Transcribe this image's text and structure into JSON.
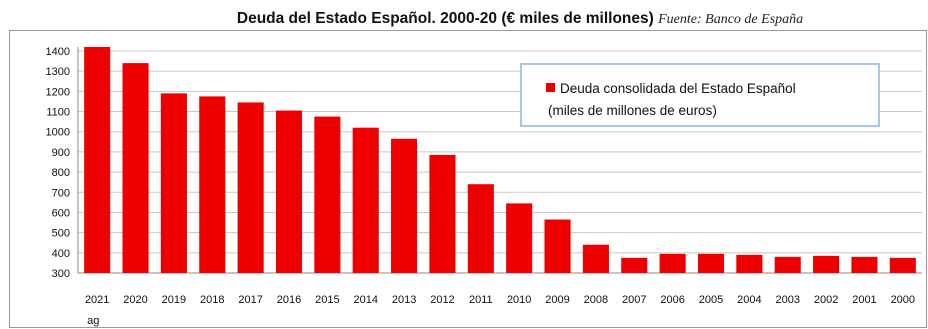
{
  "title": "Deuda del Estado Español. 2000-20 (€ miles de millones)",
  "source": "Fuente: Banco de España",
  "colors": {
    "bar": "#ee0000",
    "grid": "#c8c8c8",
    "legend_border": "#a8c8e8"
  },
  "chart_data": {
    "type": "bar",
    "categories": [
      "2021",
      "2020",
      "2019",
      "2018",
      "2017",
      "2016",
      "2015",
      "2014",
      "2013",
      "2012",
      "2011",
      "2010",
      "2009",
      "2008",
      "2007",
      "2006",
      "2005",
      "2004",
      "2003",
      "2002",
      "2001",
      "2000"
    ],
    "first_category_sublabel": "ag",
    "series": [
      {
        "name": "Deuda consolidada del Estado Español (miles de millones de euros)",
        "values": [
          1420,
          1340,
          1190,
          1175,
          1145,
          1105,
          1075,
          1020,
          965,
          885,
          740,
          645,
          565,
          440,
          375,
          395,
          395,
          390,
          380,
          385,
          380,
          375
        ]
      }
    ],
    "legend_lines": [
      "Deuda consolidada del Estado Español",
      "(miles de millones de euros)"
    ],
    "ylim": [
      300,
      1400
    ],
    "yticks": [
      300,
      400,
      500,
      600,
      700,
      800,
      900,
      1000,
      1100,
      1200,
      1300,
      1400
    ],
    "grid": true,
    "legend_position": "top-right"
  }
}
